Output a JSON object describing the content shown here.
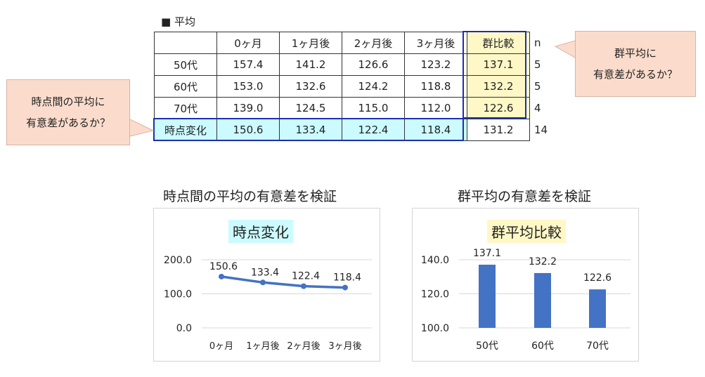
{
  "table": {
    "title": "■ 平均",
    "headers": [
      "",
      "0ヶ月",
      "1ヶ月後",
      "2ヶ月後",
      "3ヶ月後",
      "群比較",
      "n"
    ],
    "rows": [
      {
        "label": "50代",
        "v": [
          "157.4",
          "141.2",
          "126.6",
          "123.2"
        ],
        "group": "137.1",
        "n": "5"
      },
      {
        "label": "60代",
        "v": [
          "153.0",
          "132.6",
          "124.2",
          "118.8"
        ],
        "group": "132.2",
        "n": "5"
      },
      {
        "label": "70代",
        "v": [
          "139.0",
          "124.5",
          "115.0",
          "112.0"
        ],
        "group": "122.6",
        "n": "4"
      },
      {
        "label": "時点変化",
        "v": [
          "150.6",
          "133.4",
          "122.4",
          "118.4"
        ],
        "group": "131.2",
        "n": "14"
      }
    ]
  },
  "callouts": {
    "left": [
      "時点間の平均に",
      "有意差があるか？"
    ],
    "right": [
      "群平均に",
      "有意差があるか？"
    ]
  },
  "chart_data": [
    {
      "type": "line",
      "title": "時点間の平均の有意差を検証",
      "subtitle": "時点変化",
      "categories": [
        "0ヶ月",
        "1ヶ月後",
        "2ヶ月後",
        "3ヶ月後"
      ],
      "values": [
        150.6,
        133.4,
        122.4,
        118.4
      ],
      "labels": [
        "150.6",
        "133.4",
        "122.4",
        "118.4"
      ],
      "ylim": [
        0,
        200
      ],
      "yticks": [
        {
          "v": 0,
          "t": "0.0"
        },
        {
          "v": 100,
          "t": "100.0"
        },
        {
          "v": 200,
          "t": "200.0"
        }
      ],
      "color": "#4472c4"
    },
    {
      "type": "bar",
      "title": "群平均の有意差を検証",
      "subtitle": "群平均比較",
      "categories": [
        "50代",
        "60代",
        "70代"
      ],
      "values": [
        137.1,
        132.2,
        122.6
      ],
      "labels": [
        "137.1",
        "132.2",
        "122.6"
      ],
      "ylim": [
        100,
        140
      ],
      "yticks": [
        {
          "v": 100,
          "t": "100.0"
        },
        {
          "v": 120,
          "t": "120.0"
        },
        {
          "v": 140,
          "t": "140.0"
        }
      ],
      "color": "#4472c4"
    }
  ]
}
